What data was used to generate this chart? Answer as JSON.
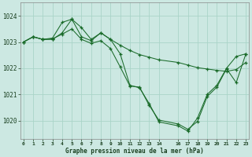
{
  "title": "Graphe pression niveau de la mer (hPa)",
  "bg_color": "#cce8e2",
  "grid_color": "#aad4c8",
  "line_color": "#1a6b2a",
  "ylim": [
    1019.3,
    1024.5
  ],
  "yticks": [
    1020,
    1021,
    1022,
    1023,
    1024
  ],
  "xlim": [
    -0.3,
    23.3
  ],
  "xtick_positions": [
    0,
    1,
    2,
    3,
    4,
    5,
    6,
    7,
    8,
    9,
    10,
    11,
    12,
    13,
    14,
    16,
    17,
    18,
    19,
    20,
    21,
    22,
    23
  ],
  "xtick_labels": [
    "0",
    "1",
    "2",
    "3",
    "4",
    "5",
    "6",
    "7",
    "8",
    "9",
    "10",
    "11",
    "12",
    "13",
    "14",
    "16",
    "17",
    "18",
    "19",
    "20",
    "21",
    "22",
    "23"
  ],
  "series1_x": [
    0,
    1,
    2,
    3,
    4,
    5,
    6,
    7,
    8,
    9,
    10,
    11,
    12,
    13,
    14,
    16,
    17,
    18,
    19,
    20,
    21,
    22,
    23
  ],
  "series1_y": [
    1023.0,
    1023.2,
    1023.1,
    1023.15,
    1023.75,
    1023.87,
    1023.2,
    1023.05,
    1023.35,
    1023.1,
    1022.55,
    1021.35,
    1021.25,
    1020.65,
    1019.95,
    1019.8,
    1019.6,
    1020.1,
    1021.0,
    1021.35,
    1022.0,
    1022.45,
    1022.55
  ],
  "series2_x": [
    0,
    1,
    2,
    3,
    4,
    5,
    6,
    7,
    8,
    9,
    10,
    11,
    12,
    13,
    14,
    16,
    17,
    18,
    19,
    20,
    21,
    22,
    23
  ],
  "series2_y": [
    1023.0,
    1023.2,
    1023.1,
    1023.1,
    1023.35,
    1023.87,
    1023.55,
    1023.1,
    1023.35,
    1023.1,
    1022.88,
    1022.68,
    1022.52,
    1022.42,
    1022.32,
    1022.22,
    1022.12,
    1022.02,
    1021.97,
    1021.92,
    1021.88,
    1021.95,
    1022.22
  ],
  "series3_x": [
    0,
    1,
    2,
    3,
    4,
    5,
    6,
    7,
    8,
    9,
    10,
    11,
    12,
    13,
    14,
    16,
    17,
    18,
    19,
    20,
    21,
    22,
    23
  ],
  "series3_y": [
    1023.0,
    1023.2,
    1023.1,
    1023.12,
    1023.3,
    1023.5,
    1023.1,
    1022.95,
    1023.05,
    1022.75,
    1022.05,
    1021.32,
    1021.28,
    1020.58,
    1020.02,
    1019.87,
    1019.67,
    1019.97,
    1020.92,
    1021.28,
    1021.98,
    1021.45,
    1022.55
  ]
}
